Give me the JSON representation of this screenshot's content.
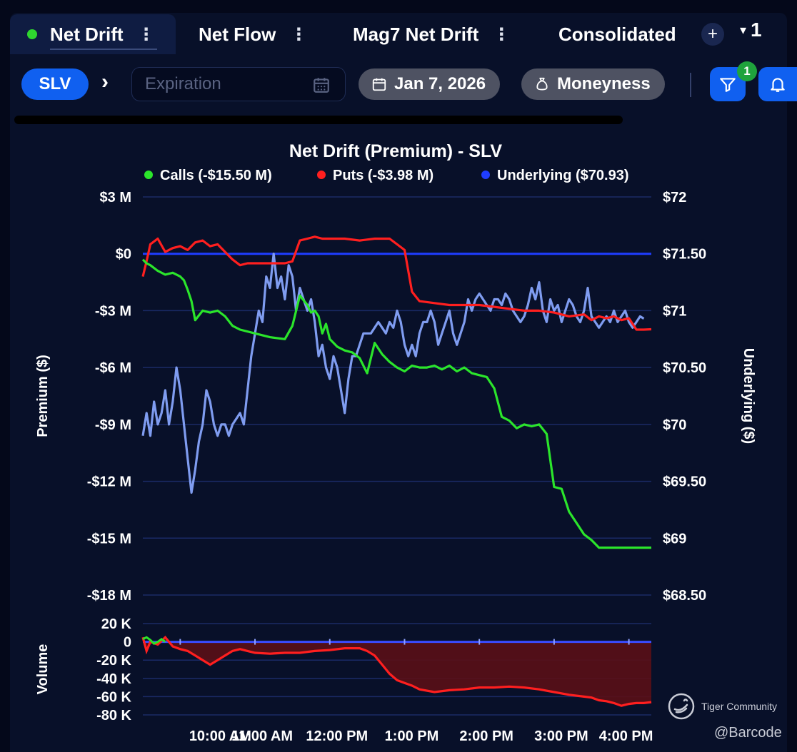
{
  "tabs": [
    {
      "label": "Net Drift",
      "active": true
    },
    {
      "label": "Net Flow",
      "active": false
    },
    {
      "label": "Mag7 Net Drift",
      "active": false
    },
    {
      "label": "Consolidated",
      "active": false
    }
  ],
  "tab_controls": {
    "add_label": "+",
    "count": "1",
    "caret": "▾"
  },
  "filters": {
    "ticker": "SLV",
    "expiration_placeholder": "Expiration",
    "date": "Jan 7, 2026",
    "moneyness": "Moneyness",
    "filter_badge": "1"
  },
  "colors": {
    "calls": "#2be52b",
    "puts": "#ff1f1f",
    "underlying": "#1f3dff",
    "underlying_line": "#7f9cf0",
    "accent": "#1060f0"
  },
  "chart_data": [
    {
      "type": "line",
      "title": "Net Drift (Premium) - SLV",
      "legend": [
        {
          "label": "Calls (-$15.50 M)",
          "color": "#2be52b"
        },
        {
          "label": "Puts (-$3.98 M)",
          "color": "#ff1f1f"
        },
        {
          "label": "Underlying ($70.93)",
          "color": "#1f3dff"
        }
      ],
      "ylabel": "Premium ($)",
      "y2label": "Underlying ($)",
      "ylim": [
        -18,
        3
      ],
      "y2lim": [
        68.5,
        72
      ],
      "ytick_labels": [
        "$3 M",
        "$0",
        "-$3 M",
        "-$6 M",
        "-$9 M",
        "-$12 M",
        "-$15 M",
        "-$18 M"
      ],
      "ytick_values": [
        3,
        0,
        -3,
        -6,
        -9,
        -12,
        -15,
        -18
      ],
      "y2tick_labels": [
        "$72",
        "$71.50",
        "$71",
        "$70.50",
        "$70",
        "$69.50",
        "$69",
        "$68.50"
      ],
      "y2tick_values": [
        72,
        71.5,
        71,
        70.5,
        70,
        69.5,
        69,
        68.5
      ],
      "xlim": [
        9.5,
        16.3
      ],
      "series": [
        {
          "name": "Calls",
          "axis": "left",
          "color": "#2be52b",
          "x": [
            9.5,
            9.55,
            9.6,
            9.7,
            9.8,
            9.9,
            10.0,
            10.05,
            10.1,
            10.15,
            10.2,
            10.3,
            10.4,
            10.5,
            10.6,
            10.7,
            10.8,
            11.0,
            11.2,
            11.4,
            11.5,
            11.6,
            11.7,
            11.75,
            11.8,
            11.85,
            11.9,
            11.95,
            12.0,
            12.1,
            12.2,
            12.3,
            12.4,
            12.5,
            12.6,
            12.7,
            12.8,
            12.9,
            13.0,
            13.1,
            13.2,
            13.3,
            13.4,
            13.5,
            13.6,
            13.7,
            13.8,
            13.9,
            14.0,
            14.1,
            14.2,
            14.3,
            14.4,
            14.5,
            14.6,
            14.7,
            14.8,
            14.9,
            15.0,
            15.1,
            15.2,
            15.3,
            15.4,
            15.5,
            15.6,
            15.7,
            15.8,
            15.9,
            16.0,
            16.1,
            16.2,
            16.3
          ],
          "y": [
            -0.3,
            -0.5,
            -0.6,
            -0.9,
            -1.1,
            -1.0,
            -1.2,
            -1.4,
            -1.9,
            -2.5,
            -3.5,
            -3.0,
            -3.1,
            -3.0,
            -3.3,
            -3.8,
            -4.0,
            -4.2,
            -4.4,
            -4.5,
            -3.8,
            -2.2,
            -2.7,
            -3.1,
            -3.0,
            -3.3,
            -4.2,
            -3.7,
            -4.5,
            -4.9,
            -5.1,
            -5.2,
            -5.5,
            -6.3,
            -4.7,
            -5.3,
            -5.7,
            -6.0,
            -6.2,
            -5.9,
            -6.0,
            -6.0,
            -5.9,
            -6.1,
            -5.9,
            -6.2,
            -6.0,
            -6.3,
            -6.4,
            -6.5,
            -7.1,
            -8.6,
            -8.8,
            -9.2,
            -9.0,
            -9.1,
            -9.0,
            -9.5,
            -12.3,
            -12.4,
            -13.6,
            -14.2,
            -14.8,
            -15.1,
            -15.5,
            -15.5,
            -15.5,
            -15.5,
            -15.5,
            -15.5,
            -15.5,
            -15.5
          ]
        },
        {
          "name": "Puts",
          "axis": "left",
          "color": "#ff1f1f",
          "x": [
            9.5,
            9.55,
            9.6,
            9.7,
            9.8,
            9.9,
            10.0,
            10.1,
            10.2,
            10.3,
            10.4,
            10.5,
            10.6,
            10.7,
            10.8,
            10.9,
            11.0,
            11.2,
            11.4,
            11.5,
            11.6,
            11.7,
            11.8,
            11.9,
            12.0,
            12.2,
            12.4,
            12.6,
            12.8,
            12.9,
            13.0,
            13.1,
            13.2,
            13.4,
            13.6,
            13.8,
            14.0,
            14.2,
            14.4,
            14.6,
            14.8,
            15.0,
            15.2,
            15.4,
            15.5,
            15.6,
            15.7,
            15.8,
            15.9,
            16.0,
            16.1,
            16.2,
            16.3
          ],
          "y": [
            -1.2,
            -0.4,
            0.5,
            0.8,
            0.1,
            0.3,
            0.4,
            0.2,
            0.6,
            0.7,
            0.4,
            0.5,
            0.1,
            -0.3,
            -0.6,
            -0.5,
            -0.5,
            -0.5,
            -0.5,
            -0.4,
            0.7,
            0.8,
            0.9,
            0.8,
            0.8,
            0.8,
            0.7,
            0.8,
            0.8,
            0.5,
            0.2,
            -2.0,
            -2.5,
            -2.6,
            -2.7,
            -2.7,
            -2.7,
            -2.8,
            -2.9,
            -3.0,
            -3.0,
            -3.1,
            -3.3,
            -3.2,
            -3.5,
            -3.3,
            -3.4,
            -3.3,
            -3.5,
            -3.4,
            -4.0,
            -4.0,
            -3.98
          ]
        },
        {
          "name": "Underlying",
          "axis": "right",
          "color": "#7f9cf0",
          "x": [
            9.5,
            9.55,
            9.6,
            9.65,
            9.7,
            9.75,
            9.8,
            9.85,
            9.9,
            9.95,
            10.0,
            10.05,
            10.1,
            10.15,
            10.2,
            10.25,
            10.3,
            10.35,
            10.4,
            10.45,
            10.5,
            10.55,
            10.6,
            10.65,
            10.7,
            10.75,
            10.8,
            10.85,
            10.9,
            10.95,
            11.0,
            11.05,
            11.1,
            11.15,
            11.2,
            11.25,
            11.3,
            11.35,
            11.4,
            11.45,
            11.5,
            11.55,
            11.6,
            11.65,
            11.7,
            11.75,
            11.8,
            11.85,
            11.9,
            11.95,
            12.0,
            12.05,
            12.1,
            12.15,
            12.2,
            12.25,
            12.3,
            12.35,
            12.4,
            12.45,
            12.5,
            12.55,
            12.6,
            12.65,
            12.7,
            12.75,
            12.8,
            12.85,
            12.9,
            12.95,
            13.0,
            13.05,
            13.1,
            13.15,
            13.2,
            13.25,
            13.3,
            13.35,
            13.4,
            13.45,
            13.5,
            13.55,
            13.6,
            13.65,
            13.7,
            13.75,
            13.8,
            13.85,
            13.9,
            13.95,
            14.0,
            14.05,
            14.1,
            14.15,
            14.2,
            14.25,
            14.3,
            14.35,
            14.4,
            14.45,
            14.5,
            14.55,
            14.6,
            14.65,
            14.7,
            14.75,
            14.8,
            14.85,
            14.9,
            14.95,
            15.0,
            15.05,
            15.1,
            15.15,
            15.2,
            15.25,
            15.3,
            15.35,
            15.4,
            15.45,
            15.5,
            15.55,
            15.6,
            15.65,
            15.7,
            15.75,
            15.8,
            15.85,
            15.9,
            15.95,
            16.0,
            16.05,
            16.1,
            16.15,
            16.2
          ],
          "y": [
            69.9,
            70.1,
            69.9,
            70.2,
            70.0,
            70.1,
            70.3,
            70.0,
            70.2,
            70.5,
            70.3,
            70.0,
            69.7,
            69.4,
            69.6,
            69.85,
            70.0,
            70.3,
            70.2,
            70.0,
            69.9,
            70.0,
            70.0,
            69.9,
            70.0,
            70.05,
            70.1,
            70.0,
            70.3,
            70.6,
            70.8,
            71.0,
            70.9,
            71.3,
            71.2,
            71.5,
            71.2,
            71.3,
            71.1,
            71.4,
            71.3,
            71.0,
            71.2,
            71.1,
            71.0,
            71.1,
            70.9,
            70.6,
            70.7,
            70.5,
            70.4,
            70.6,
            70.5,
            70.3,
            70.1,
            70.4,
            70.6,
            70.6,
            70.7,
            70.8,
            70.8,
            70.8,
            70.85,
            70.9,
            70.85,
            70.8,
            70.9,
            70.85,
            71.0,
            70.9,
            70.7,
            70.6,
            70.7,
            70.6,
            70.8,
            70.9,
            70.9,
            71.0,
            70.9,
            70.7,
            70.8,
            70.9,
            71.0,
            70.8,
            70.7,
            70.8,
            70.9,
            71.1,
            71.0,
            71.1,
            71.15,
            71.1,
            71.05,
            71.0,
            71.1,
            71.1,
            71.05,
            71.15,
            71.1,
            71.0,
            70.95,
            70.9,
            70.95,
            71.05,
            71.2,
            71.1,
            71.25,
            71.0,
            70.9,
            71.1,
            71.0,
            71.05,
            70.9,
            71.0,
            71.1,
            71.05,
            70.95,
            70.9,
            71.0,
            71.2,
            70.95,
            70.9,
            70.85,
            70.9,
            70.95,
            70.9,
            71.0,
            70.9,
            70.95,
            71.0,
            70.9,
            70.85,
            70.9,
            70.95,
            70.93
          ]
        }
      ]
    },
    {
      "type": "area",
      "ylabel": "Volume",
      "ylim": [
        -80,
        20
      ],
      "ytick_labels": [
        "20 K",
        "0",
        "-20 K",
        "-40 K",
        "-60 K",
        "-80 K"
      ],
      "ytick_values": [
        20,
        0,
        -20,
        -40,
        -60,
        -80
      ],
      "xlim": [
        9.5,
        16.3
      ],
      "xtick_labels": [
        "10:00 AM",
        "11:00 AM",
        "12:00 PM",
        "1:00 PM",
        "2:00 PM",
        "3:00 PM",
        "4:00 PM"
      ],
      "xtick_values": [
        10,
        11,
        12,
        13,
        14,
        15,
        16
      ],
      "series": [
        {
          "name": "Volume",
          "color": "#ff1f1f",
          "fill": "#5a0f16",
          "x": [
            9.5,
            9.55,
            9.6,
            9.7,
            9.8,
            9.9,
            10.0,
            10.1,
            10.2,
            10.3,
            10.4,
            10.5,
            10.6,
            10.7,
            10.8,
            10.9,
            11.0,
            11.2,
            11.4,
            11.6,
            11.8,
            12.0,
            12.2,
            12.4,
            12.5,
            12.6,
            12.7,
            12.8,
            12.9,
            13.0,
            13.1,
            13.2,
            13.4,
            13.6,
            13.8,
            14.0,
            14.2,
            14.4,
            14.6,
            14.8,
            15.0,
            15.2,
            15.4,
            15.5,
            15.6,
            15.7,
            15.8,
            15.9,
            16.0,
            16.1,
            16.2,
            16.3
          ],
          "y": [
            5,
            -10,
            0,
            -3,
            5,
            -5,
            -8,
            -10,
            -15,
            -20,
            -25,
            -20,
            -15,
            -10,
            -8,
            -10,
            -12,
            -13,
            -12,
            -12,
            -10,
            -9,
            -7,
            -7,
            -10,
            -15,
            -25,
            -35,
            -42,
            -45,
            -48,
            -52,
            -55,
            -53,
            -52,
            -50,
            -50,
            -49,
            -50,
            -52,
            -55,
            -58,
            -60,
            -61,
            -64,
            -65,
            -67,
            -70,
            -68,
            -67,
            -67,
            -66
          ]
        },
        {
          "name": "Calls Volume",
          "color": "#2be52b",
          "x": [
            9.5,
            9.55,
            9.6,
            9.65,
            9.7,
            9.75,
            9.8
          ],
          "y": [
            3,
            5,
            2,
            -2,
            0,
            3,
            0
          ]
        }
      ]
    }
  ],
  "watermark": {
    "brand": "Tiger Community",
    "handle": "@Barcode"
  }
}
